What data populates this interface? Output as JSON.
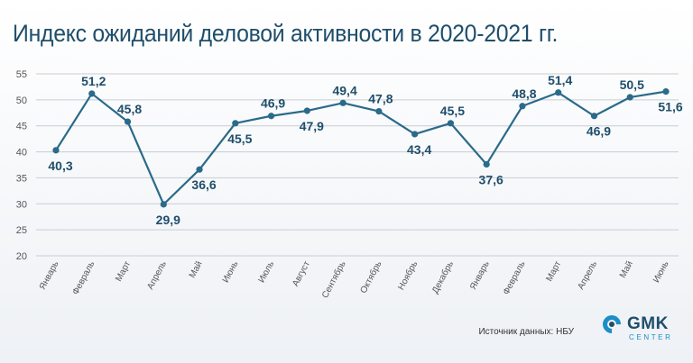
{
  "title": "Индекс ожиданий деловой активности в 2020-2021 гг.",
  "source": "Источник данных: НБУ",
  "logo": {
    "main": "GMK",
    "sub": "CENTER"
  },
  "colors": {
    "line": "#2a6a8a",
    "text": "#1f4e6b",
    "grid": "#c8ccd2",
    "axis": "#555555"
  },
  "chart_data": {
    "type": "line",
    "title": "Индекс ожиданий деловой активности в 2020-2021 гг.",
    "xlabel": "",
    "ylabel": "",
    "ylim": [
      20,
      55
    ],
    "yticks": [
      20,
      25,
      30,
      35,
      40,
      45,
      50,
      55
    ],
    "grid": true,
    "categories": [
      "Январь",
      "Февраль",
      "Март",
      "Апрель",
      "Май",
      "Июнь",
      "Июль",
      "Август",
      "Сентябрь",
      "Октябрь",
      "Ноябрь",
      "Декабрь",
      "Январь",
      "Февраль",
      "Март",
      "Апрель",
      "Май",
      "Июнь"
    ],
    "values": [
      40.3,
      51.2,
      45.8,
      29.9,
      36.6,
      45.5,
      46.9,
      47.9,
      49.4,
      47.8,
      43.4,
      45.5,
      37.6,
      48.8,
      51.4,
      46.9,
      50.5,
      51.6
    ],
    "labels": [
      "40,3",
      "51,2",
      "45,8",
      "29,9",
      "36,6",
      "45,5",
      "46,9",
      "47,9",
      "49,4",
      "47,8",
      "43,4",
      "45,5",
      "37,6",
      "48,8",
      "51,4",
      "46,9",
      "50,5",
      "51,6"
    ],
    "label_positions": [
      "below",
      "above",
      "above",
      "below",
      "below",
      "below",
      "above",
      "below",
      "above",
      "above",
      "below",
      "above",
      "below",
      "above",
      "above",
      "below",
      "above",
      "below"
    ]
  }
}
